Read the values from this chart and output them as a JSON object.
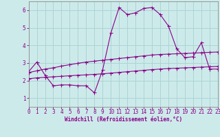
{
  "xlabel": "Windchill (Refroidissement éolien,°C)",
  "xlim": [
    0,
    23
  ],
  "ylim": [
    0.5,
    6.5
  ],
  "yticks": [
    1,
    2,
    3,
    4,
    5,
    6
  ],
  "xticks": [
    0,
    1,
    2,
    3,
    4,
    5,
    6,
    7,
    8,
    9,
    10,
    11,
    12,
    13,
    14,
    15,
    16,
    17,
    18,
    19,
    20,
    21,
    22,
    23
  ],
  "bg_color": "#cdeaea",
  "line_color": "#880088",
  "grid_color": "#aad4d4",
  "line1_x": [
    0,
    1,
    2,
    3,
    4,
    5,
    6,
    7,
    8,
    9,
    10,
    11,
    12,
    13,
    14,
    15,
    16,
    17,
    18,
    19,
    20,
    21,
    22,
    23
  ],
  "line1_y": [
    2.5,
    3.05,
    2.3,
    1.7,
    1.75,
    1.75,
    1.7,
    1.7,
    1.3,
    2.6,
    4.7,
    6.15,
    5.75,
    5.85,
    6.1,
    6.15,
    5.75,
    5.1,
    3.8,
    3.3,
    3.35,
    4.15,
    2.65,
    2.65
  ],
  "line2_x": [
    0,
    1,
    2,
    3,
    4,
    5,
    6,
    7,
    8,
    9,
    10,
    11,
    12,
    13,
    14,
    15,
    16,
    17,
    18,
    19,
    20,
    21,
    22,
    23
  ],
  "line2_y": [
    2.45,
    2.55,
    2.65,
    2.72,
    2.82,
    2.9,
    2.98,
    3.05,
    3.1,
    3.15,
    3.2,
    3.25,
    3.3,
    3.35,
    3.4,
    3.45,
    3.48,
    3.5,
    3.52,
    3.54,
    3.56,
    3.58,
    3.6,
    3.62
  ],
  "line3_x": [
    0,
    1,
    2,
    3,
    4,
    5,
    6,
    7,
    8,
    9,
    10,
    11,
    12,
    13,
    14,
    15,
    16,
    17,
    18,
    19,
    20,
    21,
    22,
    23
  ],
  "line3_y": [
    2.1,
    2.15,
    2.18,
    2.21,
    2.24,
    2.27,
    2.3,
    2.32,
    2.35,
    2.38,
    2.42,
    2.46,
    2.5,
    2.54,
    2.58,
    2.62,
    2.65,
    2.68,
    2.7,
    2.72,
    2.74,
    2.76,
    2.78,
    2.8
  ],
  "marker_size": 1.8,
  "line_width": 0.8,
  "tick_fontsize": 5.5,
  "xlabel_fontsize": 5.5
}
